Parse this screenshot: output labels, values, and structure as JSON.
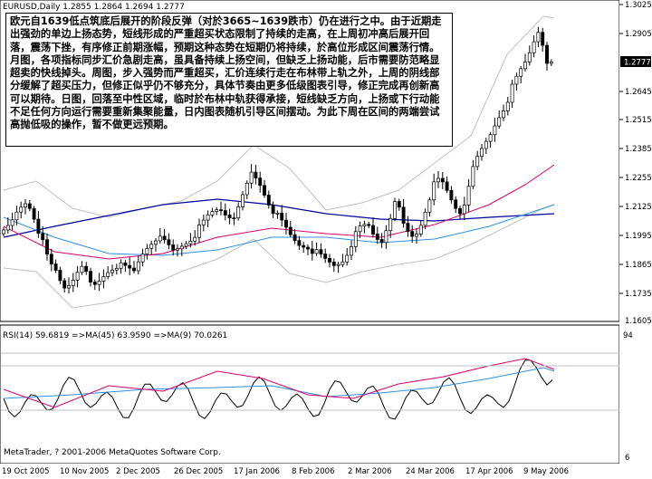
{
  "main_chart": {
    "header": "EURUSD,Daily  1.2855 1.2864 1.2694 1.2777",
    "price_levels": [
      "1.3025",
      "1.2905",
      "1.2777",
      "1.2645",
      "1.2515",
      "1.2385",
      "1.2255",
      "1.2125",
      "1.1995",
      "1.1865",
      "1.1735",
      "1.1605"
    ],
    "current_price": "1.2777"
  },
  "annotation": "欧元自1639低点筑底后展开的阶段反弹（对於3665~1639跌市）仍在进行之中。由于近期走出强劲的单边上扬态势，短线形成的严重超买状态限制了持续的走高，在上周初冲高后展开回落，震荡下挫，有序修正前期涨幅，预期这种态势在短期仍将持续，於高位形成区间震荡行情。月图，各项指标同步汇价急剧走高，虽具备持续上扬空间，但缺乏上扬动能，后市需要防范略显超卖的快线掉头。周图，步入强势而严重超买，汇价连续行走在布林带上轨之外，上周的阴线部分缓解了超买压力，但修正似乎仍不够充分，具体节奏由更多低级图表引导，修正完成再创新高可以期待。日图，回落至中性区域，临时於布林中轨获得承接，短线缺乏方向，上扬或下行动能不足任何方向运行需要重新集聚能量，日内图表随机引导区间摆动。为此下周在区间的两端尝试高抛低吸的操作，暂不做更远预期。",
  "rsi_panel": {
    "header": "RSI(14) 59.6819  =>MA(45) 63.9590  =>MA(9) 70.0261",
    "top_label": "94",
    "bottom_label": "6"
  },
  "copyright": "MetaTrader, ? 2001-2006 MetaQuotes Software Corp.",
  "time_axis": [
    "19 Oct 2005",
    "10 Nov 2005",
    "2 Dec 2005",
    "26 Dec 2005",
    "17 Jan 2006",
    "8 Feb 2006",
    "2 Mar 2006",
    "24 Mar 2006",
    "17 Apr 2006",
    "9 May 2006"
  ],
  "colors": {
    "background": "#ffffff",
    "bull_candle": "#ffffff",
    "bear_candle": "#000000",
    "bollinger": "#c0c0c0",
    "ma_long": "#0000a0",
    "ma_mid": "#e0006a",
    "ma_short": "#3090e0",
    "rsi_line": "#000000",
    "rsi_ma_fast": "#e0006a",
    "rsi_ma_slow": "#3090e0",
    "price_badge": "#000000"
  }
}
